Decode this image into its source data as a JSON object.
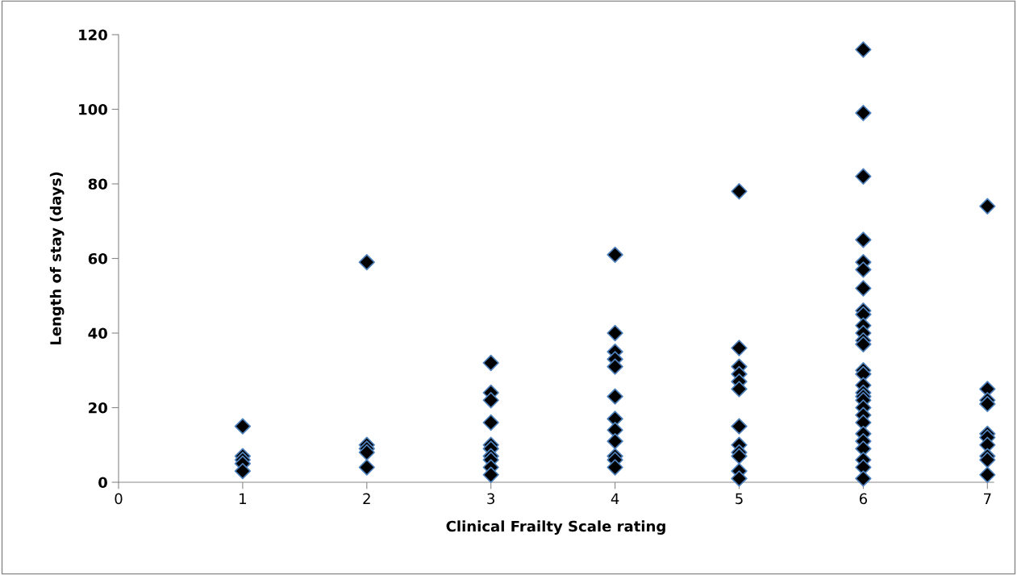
{
  "chart_data": {
    "type": "scatter",
    "xlabel": "Clinical Frailty Scale rating",
    "ylabel": "Length of stay (days)",
    "xlim": [
      0,
      7.05
    ],
    "xticks": [
      0,
      1,
      2,
      3,
      4,
      5,
      6,
      7
    ],
    "ylim": [
      0,
      120
    ],
    "yticks": [
      0,
      20,
      40,
      60,
      80,
      100,
      120
    ],
    "grid": false,
    "legend": false,
    "marker": "diamond",
    "series": [
      {
        "color": "#000000",
        "x": [
          1,
          1,
          1,
          1,
          1,
          2,
          2,
          2,
          2,
          2,
          3,
          3,
          3,
          3,
          3,
          3,
          3,
          3,
          3,
          3,
          4,
          4,
          4,
          4,
          4,
          4,
          4,
          4,
          4,
          4,
          4,
          4,
          5,
          5,
          5,
          5,
          5,
          5,
          5,
          5,
          5,
          5,
          5,
          5,
          6,
          6,
          6,
          6,
          6,
          6,
          6,
          6,
          6,
          6,
          6,
          6,
          6,
          6,
          6,
          6,
          6,
          6,
          6,
          6,
          6,
          6,
          6,
          6,
          6,
          6,
          6,
          6,
          7,
          7,
          7,
          7,
          7,
          7,
          7,
          7,
          7,
          7
        ],
        "values": [
          15,
          7,
          6,
          5,
          3,
          59,
          10,
          9,
          8,
          4,
          32,
          24,
          22,
          16,
          10,
          9,
          7,
          6,
          4,
          2,
          61,
          40,
          35,
          33,
          31,
          23,
          17,
          14,
          11,
          7,
          6,
          4,
          78,
          36,
          31,
          29,
          27,
          25,
          15,
          10,
          8,
          7,
          3,
          1,
          116,
          99,
          82,
          65,
          59,
          57,
          52,
          46,
          45,
          42,
          40,
          38,
          37,
          30,
          29,
          26,
          24,
          23,
          22,
          20,
          18,
          16,
          13,
          11,
          9,
          6,
          4,
          1,
          74,
          25,
          22,
          21,
          13,
          12,
          10,
          7,
          6,
          2
        ]
      }
    ]
  }
}
